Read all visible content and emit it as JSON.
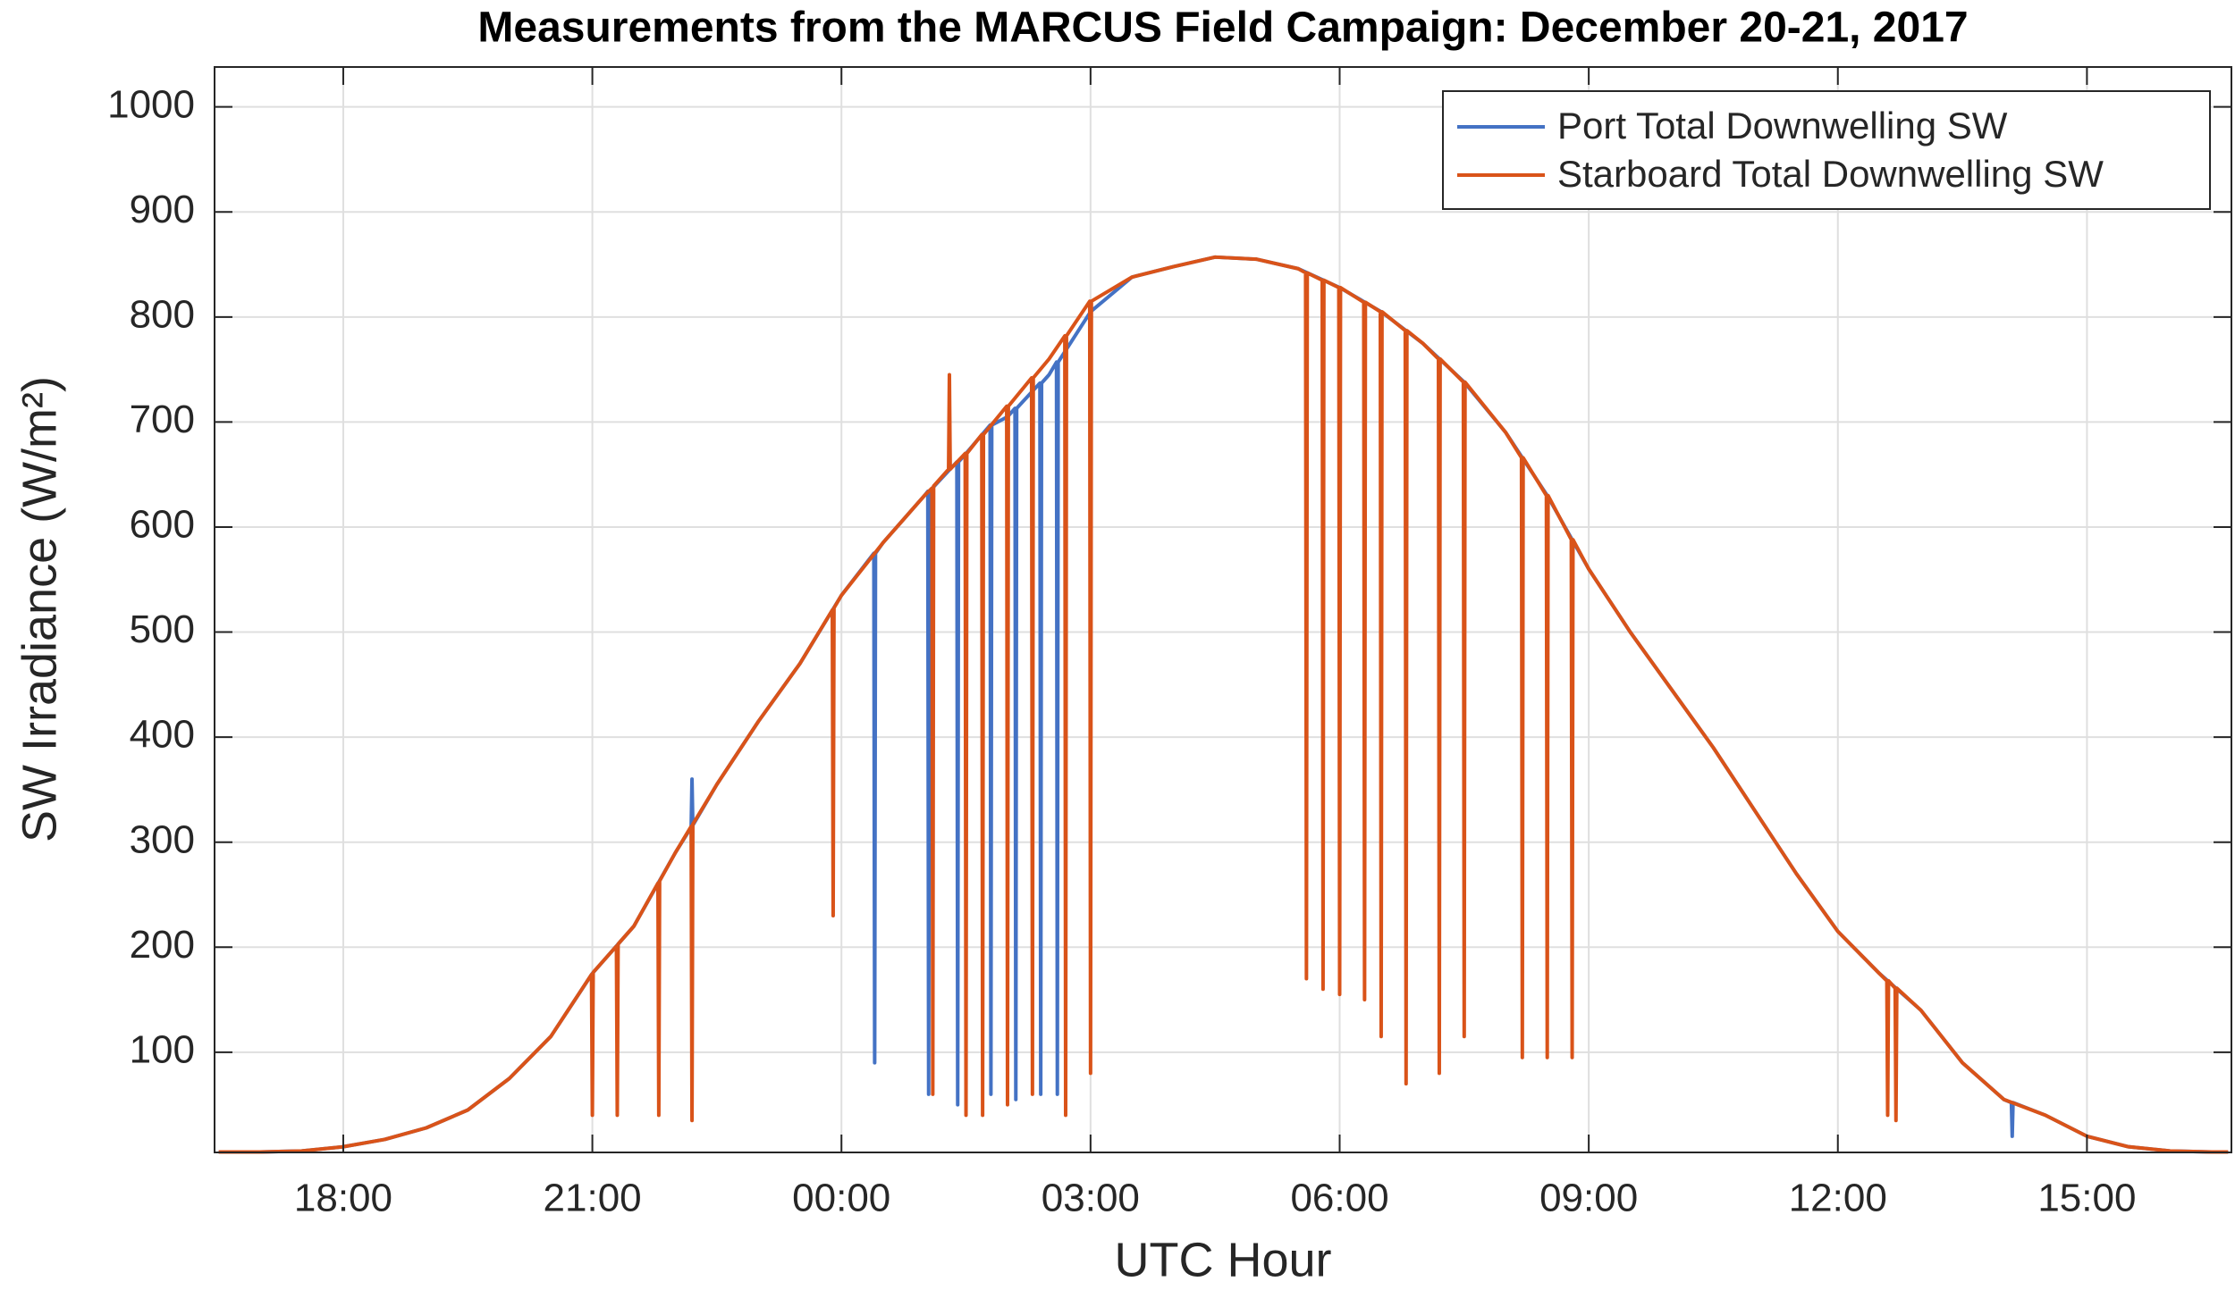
{
  "chart_data": {
    "type": "line",
    "title": "Measurements from the MARCUS Field Campaign: December 20-21, 2017",
    "xlabel": "UTC Hour",
    "ylabel": "SW Irradiance (W/m²)",
    "xlim": [
      16.45,
      40.74
    ],
    "ylim": [
      4.6,
      1038
    ],
    "xticks": [
      {
        "value": 18,
        "label": "18:00"
      },
      {
        "value": 21,
        "label": "21:00"
      },
      {
        "value": 24,
        "label": "00:00"
      },
      {
        "value": 27,
        "label": "03:00"
      },
      {
        "value": 30,
        "label": "06:00"
      },
      {
        "value": 33,
        "label": "09:00"
      },
      {
        "value": 36,
        "label": "12:00"
      },
      {
        "value": 39,
        "label": "15:00"
      }
    ],
    "yticks": [
      100,
      200,
      300,
      400,
      500,
      600,
      700,
      800,
      900,
      1000
    ],
    "grid": true,
    "legend": "upper right",
    "series": [
      {
        "name": "Port Total Downwelling SW",
        "color": "#4472c4",
        "x": [
          16.5,
          17,
          17.5,
          18,
          18.5,
          19,
          19.5,
          20,
          20.5,
          21,
          21.5,
          22,
          22.19,
          22.2,
          22.21,
          22.5,
          23,
          23.5,
          24,
          24.39,
          24.4,
          24.41,
          24.5,
          25,
          25.04,
          25.05,
          25.06,
          25.39,
          25.4,
          25.41,
          25.5,
          25.79,
          25.8,
          25.81,
          26,
          26.09,
          26.1,
          26.11,
          26.39,
          26.4,
          26.41,
          26.5,
          26.59,
          26.6,
          26.61,
          27,
          27.5,
          28,
          28.5,
          29,
          29.5,
          30,
          30.5,
          31,
          31.5,
          32,
          32.5,
          33,
          33.5,
          34,
          34.5,
          35,
          35.5,
          36,
          36.5,
          37,
          37.5,
          38,
          38.09,
          38.1,
          38.11,
          38.5,
          39,
          39.5,
          40,
          40.5,
          40.7
        ],
        "values": [
          5,
          5,
          6,
          10,
          17,
          28,
          45,
          75,
          115,
          175,
          220,
          290,
          314,
          360,
          316,
          355,
          415,
          470,
          535,
          575,
          90,
          575,
          585,
          630,
          634,
          60,
          634,
          662,
          50,
          662,
          670,
          697,
          60,
          697,
          705,
          713,
          55,
          713,
          737,
          60,
          737,
          745,
          757,
          60,
          757,
          805,
          838,
          848,
          857,
          855,
          846,
          828,
          805,
          775,
          738,
          690,
          630,
          560,
          500,
          445,
          390,
          330,
          270,
          215,
          175,
          140,
          90,
          55,
          52,
          20,
          52,
          40,
          20,
          10,
          6,
          5,
          5
        ]
      },
      {
        "name": "Starboard Total Downwelling SW",
        "color": "#d95319",
        "x": [
          16.5,
          17,
          17.5,
          18,
          18.5,
          19,
          19.5,
          20,
          20.5,
          20.99,
          21.0,
          21.01,
          21.29,
          21.3,
          21.31,
          21.5,
          21.79,
          21.8,
          21.81,
          22,
          22.19,
          22.2,
          22.21,
          22.5,
          23,
          23.5,
          23.89,
          23.9,
          23.91,
          24,
          24.5,
          25,
          25.09,
          25.1,
          25.11,
          25.29,
          25.3,
          25.31,
          25.49,
          25.5,
          25.51,
          25.69,
          25.7,
          25.71,
          25.99,
          26.0,
          26.01,
          26.29,
          26.3,
          26.31,
          26.5,
          26.69,
          26.7,
          26.71,
          26.99,
          27.0,
          27.01,
          27.5,
          28,
          28.5,
          29,
          29.5,
          29.59,
          29.6,
          29.61,
          29.79,
          29.8,
          29.81,
          29.99,
          30.0,
          30.01,
          30.29,
          30.3,
          30.31,
          30.49,
          30.5,
          30.51,
          30.79,
          30.8,
          30.81,
          31,
          31.19,
          31.2,
          31.21,
          31.49,
          31.5,
          31.51,
          32,
          32.19,
          32.2,
          32.21,
          32.49,
          32.5,
          32.51,
          32.79,
          32.8,
          32.81,
          33,
          33.5,
          34,
          34.5,
          35,
          35.5,
          36,
          36.5,
          36.59,
          36.6,
          36.61,
          36.69,
          36.7,
          36.71,
          37,
          37.5,
          38,
          38.5,
          39,
          39.5,
          40,
          40.5,
          40.7
        ],
        "values": [
          5,
          5,
          6,
          10,
          17,
          28,
          45,
          75,
          115,
          174,
          40,
          176,
          201,
          40,
          203,
          220,
          261,
          40,
          263,
          290,
          315,
          35,
          317,
          355,
          415,
          470,
          521,
          230,
          523,
          535,
          585,
          630,
          637,
          60,
          639,
          655,
          745,
          655,
          670,
          40,
          670,
          688,
          40,
          688,
          715,
          50,
          715,
          742,
          60,
          742,
          760,
          782,
          40,
          782,
          815,
          80,
          815,
          838,
          848,
          857,
          855,
          846,
          842,
          170,
          842,
          835,
          160,
          835,
          828,
          155,
          828,
          814,
          150,
          814,
          805,
          115,
          805,
          787,
          70,
          787,
          775,
          760,
          80,
          760,
          738,
          115,
          738,
          690,
          666,
          95,
          666,
          630,
          95,
          630,
          588,
          95,
          588,
          560,
          500,
          445,
          390,
          330,
          270,
          215,
          175,
          168,
          40,
          168,
          161,
          35,
          161,
          140,
          90,
          55,
          40,
          20,
          10,
          6,
          5,
          5
        ]
      }
    ]
  }
}
